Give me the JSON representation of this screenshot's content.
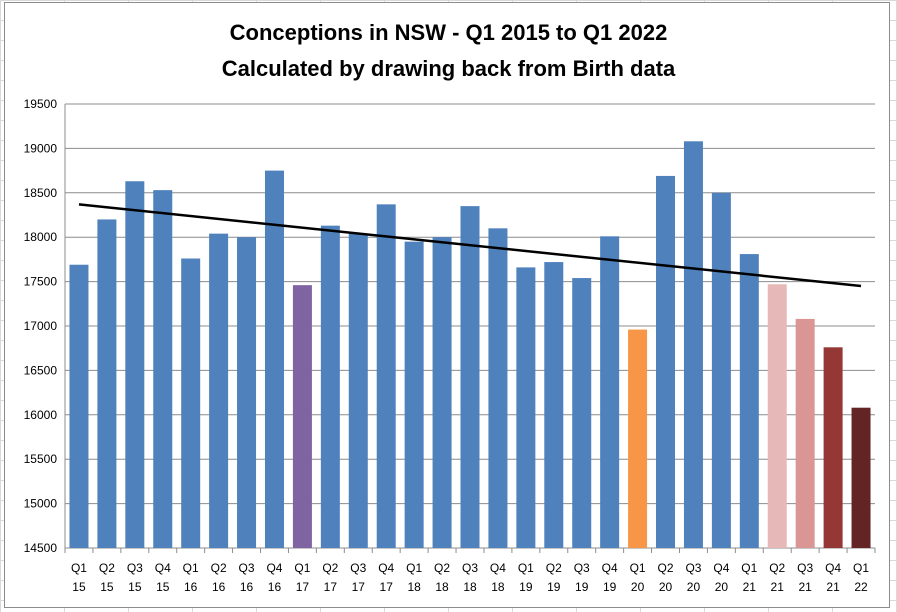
{
  "chart_data": {
    "type": "bar",
    "title": "Conceptions in NSW - Q1 2015 to Q1 2022",
    "subtitle": "Calculated by drawing back from Birth data",
    "categories": [
      [
        "Q1",
        "15"
      ],
      [
        "Q2",
        "15"
      ],
      [
        "Q3",
        "15"
      ],
      [
        "Q4",
        "15"
      ],
      [
        "Q1",
        "16"
      ],
      [
        "Q2",
        "16"
      ],
      [
        "Q3",
        "16"
      ],
      [
        "Q4",
        "16"
      ],
      [
        "Q1",
        "17"
      ],
      [
        "Q2",
        "17"
      ],
      [
        "Q3",
        "17"
      ],
      [
        "Q4",
        "17"
      ],
      [
        "Q1",
        "18"
      ],
      [
        "Q2",
        "18"
      ],
      [
        "Q3",
        "18"
      ],
      [
        "Q4",
        "18"
      ],
      [
        "Q1",
        "19"
      ],
      [
        "Q2",
        "19"
      ],
      [
        "Q3",
        "19"
      ],
      [
        "Q4",
        "19"
      ],
      [
        "Q1",
        "20"
      ],
      [
        "Q2",
        "20"
      ],
      [
        "Q3",
        "20"
      ],
      [
        "Q4",
        "20"
      ],
      [
        "Q1",
        "21"
      ],
      [
        "Q2",
        "21"
      ],
      [
        "Q3",
        "21"
      ],
      [
        "Q4",
        "21"
      ],
      [
        "Q1",
        "22"
      ]
    ],
    "values": [
      17690,
      18200,
      18630,
      18530,
      17760,
      18040,
      18000,
      18750,
      17460,
      18130,
      18040,
      18370,
      17950,
      18000,
      18350,
      18100,
      17660,
      17720,
      17540,
      18010,
      16960,
      18690,
      19080,
      18500,
      17810,
      17470,
      17080,
      16760,
      16080
    ],
    "colors": [
      "#4f81bd",
      "#4f81bd",
      "#4f81bd",
      "#4f81bd",
      "#4f81bd",
      "#4f81bd",
      "#4f81bd",
      "#4f81bd",
      "#8064a2",
      "#4f81bd",
      "#4f81bd",
      "#4f81bd",
      "#4f81bd",
      "#4f81bd",
      "#4f81bd",
      "#4f81bd",
      "#4f81bd",
      "#4f81bd",
      "#4f81bd",
      "#4f81bd",
      "#f79646",
      "#4f81bd",
      "#4f81bd",
      "#4f81bd",
      "#4f81bd",
      "#e6b9b8",
      "#d99694",
      "#953735",
      "#632523"
    ],
    "yticks": [
      14500,
      15000,
      15500,
      16000,
      16500,
      17000,
      17500,
      18000,
      18500,
      19000,
      19500
    ],
    "ylim": [
      14500,
      19500
    ],
    "trendline": {
      "start": 18370,
      "end": 17450,
      "color": "#000000"
    },
    "grid": true,
    "legend": "none",
    "xlabel": "",
    "ylabel": ""
  }
}
